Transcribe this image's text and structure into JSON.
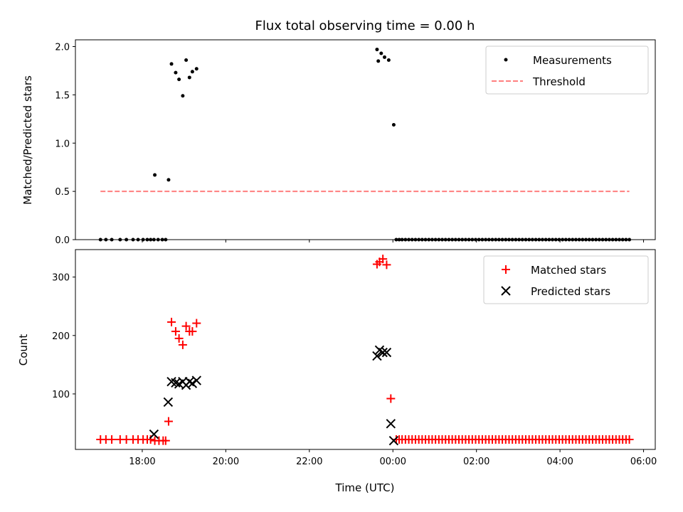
{
  "chart_data": [
    {
      "type": "scatter",
      "title": "Flux total observing time = 0.00 h",
      "xlabel": "",
      "ylabel": "Matched/Predicted stars",
      "xlim": [
        16.4,
        30.28
      ],
      "ylim": [
        0,
        2.07
      ],
      "yticks": [
        0.0,
        0.5,
        1.0,
        1.5,
        2.0
      ],
      "ytick_labels": [
        "0.0",
        "0.5",
        "1.0",
        "1.5",
        "2.0"
      ],
      "legend_position": "top-right",
      "series": [
        {
          "name": "Measurements",
          "kind": "scatter",
          "color": "#000000",
          "points": [
            [
              17.0,
              0
            ],
            [
              17.13,
              0
            ],
            [
              17.27,
              0
            ],
            [
              17.47,
              0
            ],
            [
              17.62,
              0
            ],
            [
              17.78,
              0
            ],
            [
              17.9,
              0
            ],
            [
              18.02,
              0
            ],
            [
              18.12,
              0
            ],
            [
              18.2,
              0
            ],
            [
              18.28,
              0
            ],
            [
              18.38,
              0
            ],
            [
              18.48,
              0
            ],
            [
              18.56,
              0
            ],
            [
              18.3,
              0.67
            ],
            [
              18.63,
              0.62
            ],
            [
              18.7,
              1.82
            ],
            [
              18.8,
              1.73
            ],
            [
              18.88,
              1.66
            ],
            [
              18.97,
              1.49
            ],
            [
              19.05,
              1.86
            ],
            [
              19.13,
              1.68
            ],
            [
              19.2,
              1.74
            ],
            [
              19.3,
              1.77
            ],
            [
              23.62,
              1.97
            ],
            [
              23.65,
              1.85
            ],
            [
              23.72,
              1.93
            ],
            [
              23.8,
              1.89
            ],
            [
              23.9,
              1.86
            ],
            [
              24.02,
              1.19
            ],
            [
              24.08,
              0
            ],
            [
              24.15,
              0
            ],
            [
              24.22,
              0
            ],
            [
              24.3,
              0
            ],
            [
              24.38,
              0
            ],
            [
              24.46,
              0
            ],
            [
              24.54,
              0
            ],
            [
              24.62,
              0
            ],
            [
              24.7,
              0
            ],
            [
              24.78,
              0
            ],
            [
              24.86,
              0
            ],
            [
              24.94,
              0
            ],
            [
              25.02,
              0
            ],
            [
              25.1,
              0
            ],
            [
              25.18,
              0
            ],
            [
              25.26,
              0
            ],
            [
              25.34,
              0
            ],
            [
              25.42,
              0
            ],
            [
              25.5,
              0
            ],
            [
              25.58,
              0
            ],
            [
              25.66,
              0
            ],
            [
              25.74,
              0
            ],
            [
              25.82,
              0
            ],
            [
              25.9,
              0
            ],
            [
              25.98,
              0
            ],
            [
              26.06,
              0
            ],
            [
              26.14,
              0
            ],
            [
              26.22,
              0
            ],
            [
              26.3,
              0
            ],
            [
              26.38,
              0
            ],
            [
              26.46,
              0
            ],
            [
              26.54,
              0
            ],
            [
              26.62,
              0
            ],
            [
              26.7,
              0
            ],
            [
              26.78,
              0
            ],
            [
              26.86,
              0
            ],
            [
              26.94,
              0
            ],
            [
              27.02,
              0
            ],
            [
              27.1,
              0
            ],
            [
              27.18,
              0
            ],
            [
              27.26,
              0
            ],
            [
              27.34,
              0
            ],
            [
              27.42,
              0
            ],
            [
              27.5,
              0
            ],
            [
              27.58,
              0
            ],
            [
              27.66,
              0
            ],
            [
              27.74,
              0
            ],
            [
              27.82,
              0
            ],
            [
              27.9,
              0
            ],
            [
              27.98,
              0
            ],
            [
              28.06,
              0
            ],
            [
              28.14,
              0
            ],
            [
              28.22,
              0
            ],
            [
              28.3,
              0
            ],
            [
              28.38,
              0
            ],
            [
              28.46,
              0
            ],
            [
              28.54,
              0
            ],
            [
              28.62,
              0
            ],
            [
              28.7,
              0
            ],
            [
              28.78,
              0
            ],
            [
              28.86,
              0
            ],
            [
              28.94,
              0
            ],
            [
              29.02,
              0
            ],
            [
              29.1,
              0
            ],
            [
              29.18,
              0
            ],
            [
              29.26,
              0
            ],
            [
              29.34,
              0
            ],
            [
              29.42,
              0
            ],
            [
              29.5,
              0
            ],
            [
              29.58,
              0
            ],
            [
              29.66,
              0
            ]
          ]
        },
        {
          "name": "Threshold",
          "kind": "line",
          "style": "dashed",
          "color": "#ff7f7f",
          "points": [
            [
              17.0,
              0.5
            ],
            [
              29.66,
              0.5
            ]
          ]
        }
      ]
    },
    {
      "type": "scatter",
      "title": "",
      "xlabel": "Time (UTC)",
      "ylabel": "Count",
      "xlim": [
        16.4,
        30.28
      ],
      "ylim": [
        5,
        347
      ],
      "xticks": [
        18,
        20,
        22,
        24,
        26,
        28,
        30
      ],
      "xtick_labels": [
        "18:00",
        "20:00",
        "22:00",
        "00:00",
        "02:00",
        "04:00",
        "06:00"
      ],
      "yticks": [
        100,
        200,
        300
      ],
      "ytick_labels": [
        "100",
        "200",
        "300"
      ],
      "legend_position": "top-right",
      "series": [
        {
          "name": "Matched stars",
          "marker": "plus",
          "color": "#ff0000",
          "points": [
            [
              17.0,
              22
            ],
            [
              17.13,
              22
            ],
            [
              17.27,
              22
            ],
            [
              17.47,
              22
            ],
            [
              17.62,
              22
            ],
            [
              17.78,
              22
            ],
            [
              17.9,
              22
            ],
            [
              18.02,
              22
            ],
            [
              18.12,
              22
            ],
            [
              18.2,
              22
            ],
            [
              18.3,
              20
            ],
            [
              18.4,
              20
            ],
            [
              18.5,
              20
            ],
            [
              18.56,
              20
            ],
            [
              18.63,
              53
            ],
            [
              18.7,
              223
            ],
            [
              18.8,
              207
            ],
            [
              18.88,
              195
            ],
            [
              18.97,
              184
            ],
            [
              19.05,
              216
            ],
            [
              19.13,
              207
            ],
            [
              19.2,
              207
            ],
            [
              19.3,
              221
            ],
            [
              23.62,
              322
            ],
            [
              23.68,
              326
            ],
            [
              23.76,
              331
            ],
            [
              23.85,
              321
            ],
            [
              23.95,
              92
            ],
            [
              24.08,
              22
            ],
            [
              24.15,
              22
            ],
            [
              24.22,
              22
            ],
            [
              24.3,
              22
            ],
            [
              24.38,
              22
            ],
            [
              24.46,
              22
            ],
            [
              24.54,
              22
            ],
            [
              24.62,
              22
            ],
            [
              24.7,
              22
            ],
            [
              24.78,
              22
            ],
            [
              24.86,
              22
            ],
            [
              24.94,
              22
            ],
            [
              25.02,
              22
            ],
            [
              25.1,
              22
            ],
            [
              25.18,
              22
            ],
            [
              25.26,
              22
            ],
            [
              25.34,
              22
            ],
            [
              25.42,
              22
            ],
            [
              25.5,
              22
            ],
            [
              25.58,
              22
            ],
            [
              25.66,
              22
            ],
            [
              25.74,
              22
            ],
            [
              25.82,
              22
            ],
            [
              25.9,
              22
            ],
            [
              25.98,
              22
            ],
            [
              26.06,
              22
            ],
            [
              26.14,
              22
            ],
            [
              26.22,
              22
            ],
            [
              26.3,
              22
            ],
            [
              26.38,
              22
            ],
            [
              26.46,
              22
            ],
            [
              26.54,
              22
            ],
            [
              26.62,
              22
            ],
            [
              26.7,
              22
            ],
            [
              26.78,
              22
            ],
            [
              26.86,
              22
            ],
            [
              26.94,
              22
            ],
            [
              27.02,
              22
            ],
            [
              27.1,
              22
            ],
            [
              27.18,
              22
            ],
            [
              27.26,
              22
            ],
            [
              27.34,
              22
            ],
            [
              27.42,
              22
            ],
            [
              27.5,
              22
            ],
            [
              27.58,
              22
            ],
            [
              27.66,
              22
            ],
            [
              27.74,
              22
            ],
            [
              27.82,
              22
            ],
            [
              27.9,
              22
            ],
            [
              27.98,
              22
            ],
            [
              28.06,
              22
            ],
            [
              28.14,
              22
            ],
            [
              28.22,
              22
            ],
            [
              28.3,
              22
            ],
            [
              28.38,
              22
            ],
            [
              28.46,
              22
            ],
            [
              28.54,
              22
            ],
            [
              28.62,
              22
            ],
            [
              28.7,
              22
            ],
            [
              28.78,
              22
            ],
            [
              28.86,
              22
            ],
            [
              28.94,
              22
            ],
            [
              29.02,
              22
            ],
            [
              29.1,
              22
            ],
            [
              29.18,
              22
            ],
            [
              29.26,
              22
            ],
            [
              29.34,
              22
            ],
            [
              29.42,
              22
            ],
            [
              29.5,
              22
            ],
            [
              29.58,
              22
            ],
            [
              29.66,
              22
            ]
          ]
        },
        {
          "name": "Predicted stars",
          "marker": "x",
          "color": "#000000",
          "points": [
            [
              18.28,
              31
            ],
            [
              18.62,
              86
            ],
            [
              18.7,
              121
            ],
            [
              18.8,
              119
            ],
            [
              18.88,
              117
            ],
            [
              18.97,
              121
            ],
            [
              19.05,
              115
            ],
            [
              19.13,
              121
            ],
            [
              19.2,
              118
            ],
            [
              19.3,
              123
            ],
            [
              23.62,
              165
            ],
            [
              23.68,
              175
            ],
            [
              23.76,
              171
            ],
            [
              23.85,
              171
            ],
            [
              23.95,
              49
            ],
            [
              24.02,
              20
            ]
          ]
        }
      ]
    }
  ]
}
